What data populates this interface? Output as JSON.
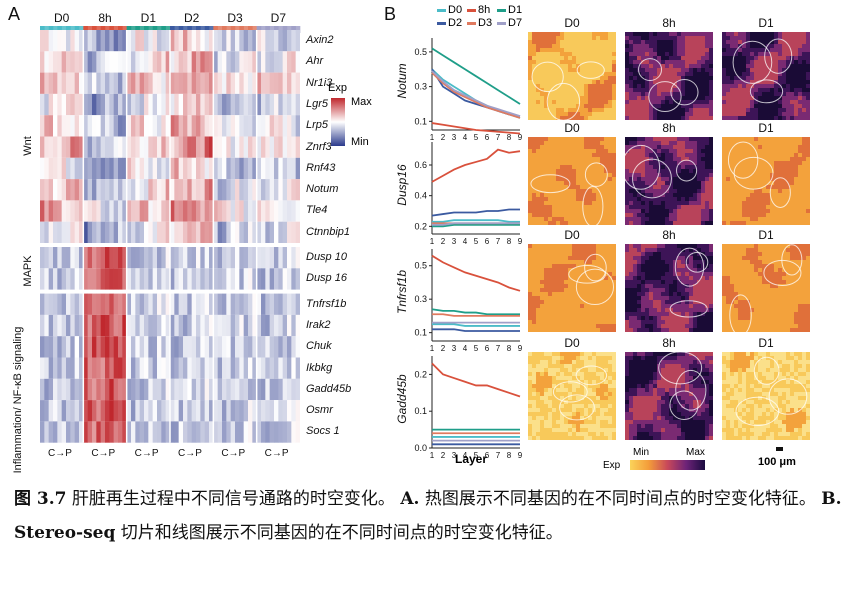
{
  "panelA": {
    "letter": "A",
    "timepoints": [
      "D0",
      "8h",
      "D1",
      "D2",
      "D3",
      "D7"
    ],
    "timepoint_colors": [
      "#4bbcc8",
      "#d9513c",
      "#1f9e89",
      "#3b5aa0",
      "#e07a5f",
      "#a0a0c8"
    ],
    "cp_label": "C→P",
    "genes": [
      "Axin2",
      "Ahr",
      "Nr1i3",
      "Lgr5",
      "Lrp5",
      "Znrf3",
      "Rnf43",
      "Notum",
      "Tle4",
      "Ctnnbip1",
      "Dusp 10",
      "Dusp 16",
      "Tnfrsf1b",
      "Irak2",
      "Chuk",
      "Ikbkg",
      "Gadd45b",
      "Osmr",
      "Socs 1"
    ],
    "groups": [
      {
        "label": "Wnt",
        "rows": 10
      },
      {
        "label": "MAPK",
        "rows": 2
      },
      {
        "label": "Inflammation/ NF-κB signaling",
        "rows": 7
      }
    ],
    "legend": {
      "title": "Exp",
      "max": "Max",
      "min": "Min",
      "max_color": "#c0272d",
      "mid_color": "#ffffff",
      "min_color": "#2b3a8c"
    }
  },
  "panelB": {
    "letter": "B",
    "legend": [
      {
        "label": "D0",
        "color": "#4bbcc8"
      },
      {
        "label": "8h",
        "color": "#d9513c"
      },
      {
        "label": "D1",
        "color": "#1f9e89"
      },
      {
        "label": "D2",
        "color": "#3b5aa0"
      },
      {
        "label": "D3",
        "color": "#e07a5f"
      },
      {
        "label": "D7",
        "color": "#a0a0c8"
      }
    ],
    "rows": [
      {
        "gene": "Notum",
        "yticks": [
          "0.5",
          "0.3",
          "0.1"
        ],
        "tiles": [
          "D0",
          "8h",
          "D1"
        ]
      },
      {
        "gene": "Dusp16",
        "yticks": [
          "0.6",
          "0.4",
          "0.2"
        ],
        "tiles": [
          "D0",
          "8h",
          "D1"
        ]
      },
      {
        "gene": "Tnfrsf1b",
        "yticks": [
          "0.5",
          "0.3",
          "0.1"
        ],
        "tiles": [
          "D0",
          "8h",
          "D1"
        ]
      },
      {
        "gene": "Gadd45b",
        "yticks": [
          "0.2",
          "0.1",
          "0.0"
        ],
        "tiles": [
          "D0",
          "8h",
          "D1"
        ]
      }
    ],
    "x_ticks": [
      "1",
      "2",
      "3",
      "4",
      "5",
      "6",
      "7",
      "8",
      "9"
    ],
    "xlabel": "Layer",
    "colorbar": {
      "title": "Exp",
      "min": "Min",
      "max": "Max"
    },
    "scalebar": "100 μm"
  },
  "chart_data": [
    {
      "type": "line",
      "title": "Notum",
      "xlabel": "Layer",
      "ylabel": "Notum",
      "x": [
        1,
        2,
        3,
        4,
        5,
        6,
        7,
        8,
        9
      ],
      "ylim": [
        0.05,
        0.58
      ],
      "series": [
        {
          "name": "D0",
          "values": [
            0.4,
            0.34,
            0.3,
            0.26,
            0.22,
            0.19,
            0.16,
            0.14,
            0.12
          ]
        },
        {
          "name": "8h",
          "values": [
            0.09,
            0.08,
            0.07,
            0.06,
            0.05,
            0.045,
            0.04,
            0.035,
            0.03
          ]
        },
        {
          "name": "D1",
          "values": [
            0.52,
            0.48,
            0.44,
            0.4,
            0.36,
            0.32,
            0.28,
            0.24,
            0.2
          ]
        },
        {
          "name": "D2",
          "values": [
            0.4,
            0.3,
            0.26,
            0.22,
            0.2,
            0.18,
            0.16,
            0.14,
            0.13
          ]
        },
        {
          "name": "D3",
          "values": [
            0.38,
            0.32,
            0.27,
            0.24,
            0.21,
            0.18,
            0.16,
            0.14,
            0.12
          ]
        },
        {
          "name": "D7",
          "values": [
            0.39,
            0.33,
            0.28,
            0.25,
            0.22,
            0.19,
            0.17,
            0.15,
            0.13
          ]
        }
      ]
    },
    {
      "type": "line",
      "title": "Dusp16",
      "xlabel": "Layer",
      "ylabel": "Dusp16",
      "x": [
        1,
        2,
        3,
        4,
        5,
        6,
        7,
        8,
        9
      ],
      "ylim": [
        0.15,
        0.75
      ],
      "series": [
        {
          "name": "D0",
          "values": [
            0.23,
            0.23,
            0.24,
            0.24,
            0.24,
            0.24,
            0.24,
            0.23,
            0.23
          ]
        },
        {
          "name": "8h",
          "values": [
            0.49,
            0.53,
            0.57,
            0.6,
            0.62,
            0.64,
            0.7,
            0.68,
            0.69
          ]
        },
        {
          "name": "D1",
          "values": [
            0.2,
            0.2,
            0.21,
            0.21,
            0.21,
            0.21,
            0.21,
            0.21,
            0.21
          ]
        },
        {
          "name": "D2",
          "values": [
            0.27,
            0.28,
            0.29,
            0.29,
            0.29,
            0.3,
            0.3,
            0.31,
            0.31
          ]
        },
        {
          "name": "D3",
          "values": [
            0.22,
            0.22,
            0.22,
            0.22,
            0.22,
            0.22,
            0.22,
            0.22,
            0.22
          ]
        },
        {
          "name": "D7",
          "values": [
            0.21,
            0.21,
            0.22,
            0.22,
            0.22,
            0.22,
            0.22,
            0.22,
            0.22
          ]
        }
      ]
    },
    {
      "type": "line",
      "title": "Tnfrsf1b",
      "xlabel": "Layer",
      "ylabel": "Tnfrsf1b",
      "x": [
        1,
        2,
        3,
        4,
        5,
        6,
        7,
        8,
        9
      ],
      "ylim": [
        0.05,
        0.6
      ],
      "series": [
        {
          "name": "D0",
          "values": [
            0.15,
            0.15,
            0.15,
            0.14,
            0.14,
            0.14,
            0.14,
            0.14,
            0.14
          ]
        },
        {
          "name": "8h",
          "values": [
            0.56,
            0.52,
            0.49,
            0.46,
            0.44,
            0.42,
            0.4,
            0.37,
            0.35
          ]
        },
        {
          "name": "D1",
          "values": [
            0.24,
            0.23,
            0.23,
            0.22,
            0.22,
            0.21,
            0.21,
            0.21,
            0.21
          ]
        },
        {
          "name": "D2",
          "values": [
            0.12,
            0.12,
            0.12,
            0.11,
            0.11,
            0.11,
            0.11,
            0.11,
            0.11
          ]
        },
        {
          "name": "D3",
          "values": [
            0.21,
            0.21,
            0.2,
            0.2,
            0.2,
            0.2,
            0.2,
            0.2,
            0.2
          ]
        },
        {
          "name": "D7",
          "values": [
            0.16,
            0.16,
            0.16,
            0.16,
            0.16,
            0.16,
            0.16,
            0.16,
            0.16
          ]
        }
      ]
    },
    {
      "type": "line",
      "title": "Gadd45b",
      "xlabel": "Layer",
      "ylabel": "Gadd45b",
      "x": [
        1,
        2,
        3,
        4,
        5,
        6,
        7,
        8,
        9
      ],
      "ylim": [
        0.0,
        0.25
      ],
      "series": [
        {
          "name": "D0",
          "values": [
            0.03,
            0.03,
            0.03,
            0.03,
            0.03,
            0.03,
            0.03,
            0.03,
            0.03
          ]
        },
        {
          "name": "8h",
          "values": [
            0.23,
            0.2,
            0.19,
            0.18,
            0.17,
            0.17,
            0.16,
            0.15,
            0.14
          ]
        },
        {
          "name": "D1",
          "values": [
            0.05,
            0.05,
            0.05,
            0.05,
            0.05,
            0.05,
            0.05,
            0.05,
            0.05
          ]
        },
        {
          "name": "D2",
          "values": [
            0.01,
            0.01,
            0.01,
            0.01,
            0.01,
            0.01,
            0.01,
            0.01,
            0.01
          ]
        },
        {
          "name": "D3",
          "values": [
            0.04,
            0.04,
            0.04,
            0.04,
            0.04,
            0.04,
            0.04,
            0.04,
            0.04
          ]
        },
        {
          "name": "D7",
          "values": [
            0.02,
            0.02,
            0.02,
            0.02,
            0.02,
            0.02,
            0.02,
            0.02,
            0.02
          ]
        }
      ]
    }
  ],
  "caption": {
    "fig_label": "图 3.7",
    "line1": "肝脏再生过程中不同信号通路的时空变化。",
    "a_label": "A.",
    "a_text": "热图展示不同基因的在不同时间点的时空变化特征。",
    "b_label": "B. Stereo-seq",
    "b_text": "切片和线图展示不同基因的在不同时间点的时空变化特征。"
  }
}
